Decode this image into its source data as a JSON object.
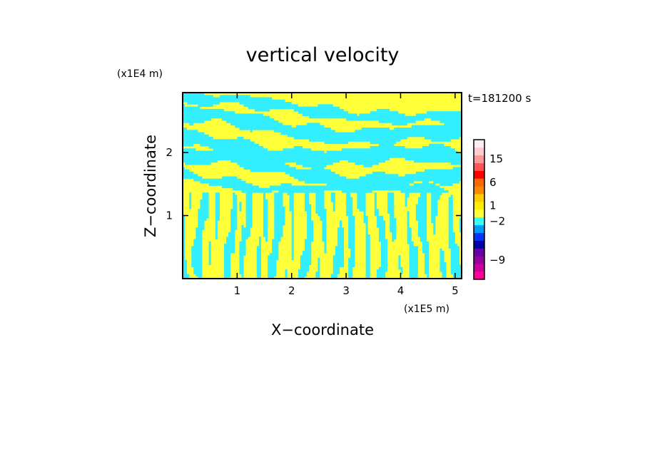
{
  "chart_data": {
    "type": "heatmap",
    "title": "vertical velocity",
    "xlabel": "X−coordinate",
    "ylabel": "Z−coordinate",
    "x_unit": "(x1E5 m)",
    "y_unit": "(x1E4 m)",
    "time_label": "t=181200 s",
    "xlim": [
      0,
      5.12
    ],
    "ylim": [
      0,
      2.95
    ],
    "x_ticks": [
      1,
      2,
      3,
      4,
      5
    ],
    "y_ticks": [
      1,
      2
    ],
    "x_tick_labels": [
      "1",
      "2",
      "3",
      "4",
      "5"
    ],
    "y_tick_labels": [
      "1",
      "2"
    ],
    "field_colors": {
      "positive": "#ffff3a",
      "negative": "#33eeff"
    },
    "bands": [
      {
        "zc": 2.68,
        "amp": 0.06,
        "phase": 0.4,
        "th": 0.08
      },
      {
        "zc": 2.38,
        "amp": 0.1,
        "phase": 1.1,
        "th": 0.11
      },
      {
        "zc": 2.0,
        "amp": 0.1,
        "phase": 2.0,
        "th": 0.12
      },
      {
        "zc": 1.7,
        "amp": 0.12,
        "phase": 0.7,
        "th": 0.1
      },
      {
        "zc": 1.45,
        "amp": 0.09,
        "phase": 2.6,
        "th": 0.07
      }
    ],
    "colorbar": {
      "levels": [
        {
          "color": "#ff0099"
        },
        {
          "color": "#cc0099"
        },
        {
          "color": "#990099"
        },
        {
          "color": "#6600aa"
        },
        {
          "color": "#0000aa"
        },
        {
          "color": "#0033ff"
        },
        {
          "color": "#0099ff"
        },
        {
          "color": "#33ffff"
        },
        {
          "color": "#ffff33"
        },
        {
          "color": "#ffee00"
        },
        {
          "color": "#ffcc00"
        },
        {
          "color": "#ff8800"
        },
        {
          "color": "#ff6600"
        },
        {
          "color": "#ff0000"
        },
        {
          "color": "#ff5555"
        },
        {
          "color": "#ff9999"
        },
        {
          "color": "#ffcccc"
        },
        {
          "color": "#ffeeee"
        }
      ],
      "tick_labels": [
        "15",
        "6",
        "1",
        "−2",
        "−9"
      ]
    }
  }
}
